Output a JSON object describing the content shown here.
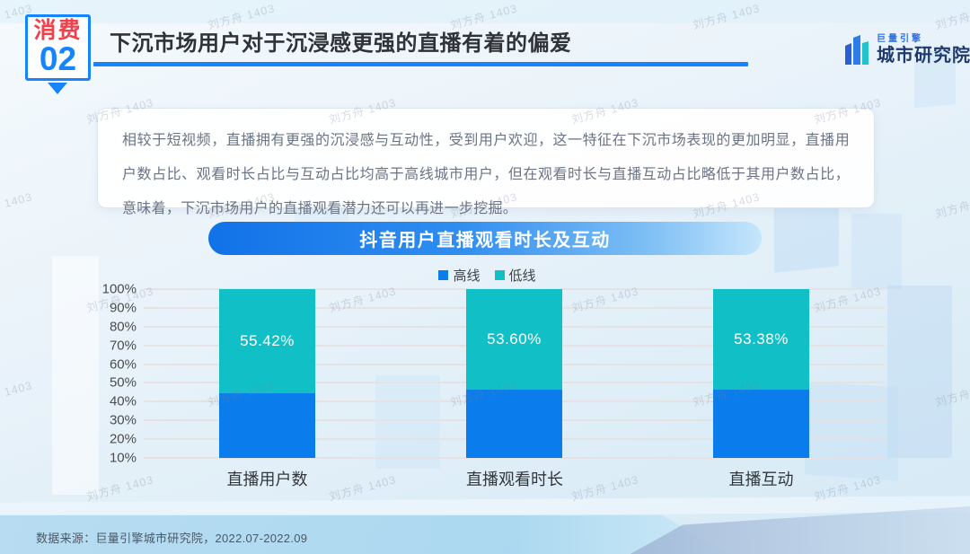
{
  "page": {
    "watermark": "刘方舟 1403"
  },
  "header": {
    "badge": {
      "category": "消费",
      "number": "02"
    },
    "title": "下沉市场用户对于沉浸感更强的直播有着的偏爱",
    "logo": {
      "brand": "巨量引擎",
      "name": "城市研究院"
    }
  },
  "summary": {
    "text": "相较于短视频，直播拥有更强的沉浸感与互动性，受到用户欢迎，这一特征在下沉市场表现的更加明显，直播用户数占比、观看时长占比与互动占比均高于高线城市用户，但在观看时长与直播互动占比略低于其用户数占比，意味着，下沉市场用户的直播观看潜力还可以再进一步挖掘。"
  },
  "chart_data": {
    "type": "bar",
    "stacked": true,
    "title": "抖音用户直播观看时长及互动",
    "categories": [
      "直播用户数",
      "直播观看时长",
      "直播互动"
    ],
    "series": [
      {
        "name": "高线",
        "color": "#0a7cec",
        "values": [
          44.58,
          46.4,
          46.62
        ]
      },
      {
        "name": "低线",
        "color": "#10c0c6",
        "values": [
          55.42,
          53.6,
          53.38
        ]
      }
    ],
    "data_labels": [
      "55.42%",
      "53.60%",
      "53.38%"
    ],
    "y_ticks": [
      "100%",
      "90%",
      "80%",
      "70%",
      "60%",
      "50%",
      "40%",
      "30%",
      "20%",
      "10%"
    ],
    "ylim": [
      10,
      100
    ],
    "grid": true,
    "legend_position": "top"
  },
  "footer": {
    "source": "数据来源：巨量引擎城市研究院，2022.07-2022.09"
  }
}
